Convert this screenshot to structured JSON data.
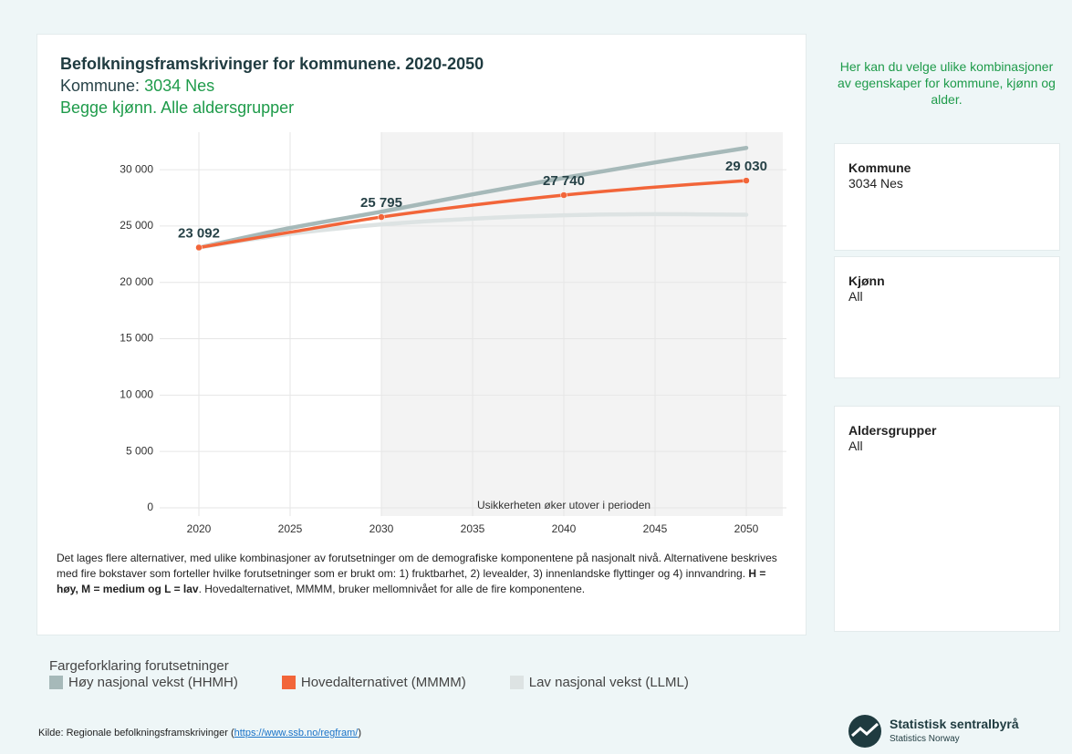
{
  "chart_data": {
    "type": "line",
    "title": "Befolkningsframskrivinger for kommunene. 2020-2050",
    "subtitle_label": "Kommune:",
    "subtitle_value": "3034 Nes",
    "subtitle2": "Begge kjønn. Alle aldersgrupper",
    "x": [
      2020,
      2025,
      2030,
      2035,
      2040,
      2045,
      2050
    ],
    "series": [
      {
        "name": "Høy nasjonal vekst (HHMH)",
        "color": "#a6b9b9",
        "values": [
          23092,
          24820,
          26270,
          27810,
          29270,
          30640,
          31930
        ]
      },
      {
        "name": "Lav nasjonal vekst (LLML)",
        "color": "#dde3e3",
        "values": [
          23092,
          24300,
          25140,
          25650,
          25950,
          26050,
          26000
        ]
      },
      {
        "name": "Hovedalternativet (MMMM)",
        "color": "#f26539",
        "values": [
          23092,
          24450,
          25795,
          26850,
          27740,
          28450,
          29030
        ],
        "value_labels": [
          "23 092",
          null,
          "25 795",
          null,
          "27 740",
          null,
          "29 030"
        ]
      }
    ],
    "legend_order": [
      0,
      2,
      1
    ],
    "xlim": [
      2018,
      2052
    ],
    "xticks": [
      2020,
      2025,
      2030,
      2035,
      2040,
      2045,
      2050
    ],
    "ylim": [
      0,
      33000
    ],
    "yticks": [
      0,
      {
        "value": 5000,
        "label": "5 000"
      },
      {
        "value": 10000,
        "label": "10 000"
      },
      {
        "value": 15000,
        "label": "15 000"
      },
      {
        "value": 20000,
        "label": "20 000"
      },
      {
        "value": 25000,
        "label": "25 000"
      },
      {
        "value": 30000,
        "label": "30 000"
      }
    ],
    "grid": true,
    "shade": {
      "from": 2030,
      "to": 2050,
      "label": "Usikkerheten øker utover i perioden",
      "color": "#f3f3f3"
    },
    "legend_title": "Fargeforklaring forutsetninger"
  },
  "description": [
    "Det lages flere alternativer, med ulike kombinasjoner av forutsetninger om de demografiske komponentene på nasjonalt nivå. Alternativene beskrives med fire bokstaver som forteller hvilke forutsetninger som er brukt om: 1) fruktbarhet, 2) levealder, 3) innenlandske flyttinger og 4) innvandring. ",
    "H = høy, M = medium og L = lav",
    ". Hovedalternativet, MMMM, bruker mellomnivået for alle de fire komponentene."
  ],
  "panel": {
    "intro": "Her kan du velge ulike kombinasjoner av egenskaper for kommune, kjønn og alder.",
    "filters": [
      {
        "label": "Kommune",
        "value": "3034 Nes"
      },
      {
        "label": "Kjønn",
        "value": "All"
      },
      {
        "label": "Aldersgrupper",
        "value": "All"
      }
    ]
  },
  "footer": {
    "source_prefix": "Kilde: Regionale befolkningsframskrivinger (",
    "link": "https://www.ssb.no/regfram/",
    "source_suffix": ")",
    "logo_name": "Statistisk sentralbyrå",
    "logo_sub": "Statistics Norway"
  }
}
